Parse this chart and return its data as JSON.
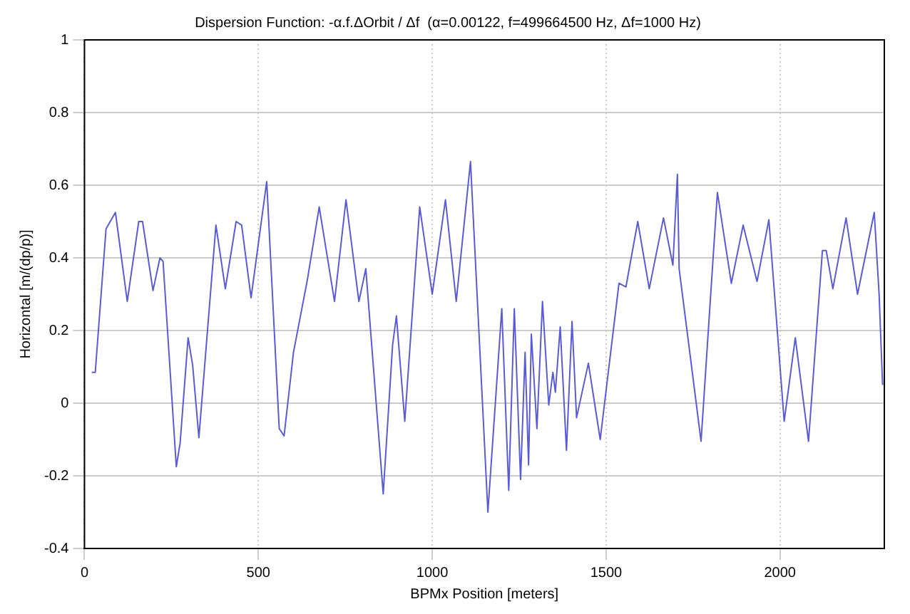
{
  "chart_data": {
    "type": "line",
    "title": "Dispersion Function: -α.f.ΔOrbit / Δf  (α=0.00122, f=499664500 Hz, Δf=1000 Hz)",
    "xlabel": "BPMx Position [meters]",
    "ylabel": "Horizontal [m/(dp/p)]",
    "series": [
      {
        "color": "#5b5bd6",
        "x": [
          21,
          31,
          62,
          89,
          123,
          156,
          167,
          197,
          217,
          226,
          264,
          275,
          298,
          311,
          329,
          378,
          405,
          436,
          452,
          479,
          524,
          560,
          574,
          601,
          641,
          675,
          719,
          752,
          789,
          809,
          859,
          886,
          897,
          921,
          964,
          1000,
          1038,
          1069,
          1110,
          1160,
          1200,
          1220,
          1236,
          1254,
          1267,
          1277,
          1285,
          1301,
          1317,
          1335,
          1347,
          1354,
          1368,
          1386,
          1402,
          1415,
          1449,
          1483,
          1537,
          1557,
          1591,
          1624,
          1665,
          1692,
          1705,
          1710,
          1773,
          1820,
          1860,
          1894,
          1934,
          1968,
          2012,
          2044,
          2082,
          2122,
          2133,
          2152,
          2190,
          2223,
          2271,
          2285,
          2295
        ],
        "values": [
          0.085,
          0.085,
          0.48,
          0.525,
          0.28,
          0.5,
          0.5,
          0.31,
          0.4,
          0.39,
          -0.175,
          -0.11,
          0.18,
          0.105,
          -0.095,
          0.49,
          0.315,
          0.5,
          0.49,
          0.29,
          0.61,
          -0.07,
          -0.09,
          0.14,
          0.34,
          0.54,
          0.28,
          0.56,
          0.28,
          0.37,
          -0.25,
          0.16,
          0.24,
          -0.05,
          0.54,
          0.3,
          0.56,
          0.28,
          0.665,
          -0.3,
          0.26,
          -0.24,
          0.26,
          -0.21,
          0.14,
          -0.17,
          0.19,
          -0.07,
          0.28,
          -0.005,
          0.085,
          0.03,
          0.21,
          -0.13,
          0.225,
          -0.04,
          0.11,
          -0.1,
          0.33,
          0.32,
          0.5,
          0.315,
          0.51,
          0.38,
          0.63,
          0.37,
          -0.105,
          0.58,
          0.33,
          0.49,
          0.335,
          0.505,
          -0.05,
          0.18,
          -0.105,
          0.42,
          0.42,
          0.315,
          0.51,
          0.3,
          0.525,
          0.3,
          0.05
        ]
      }
    ],
    "xlim": [
      0,
      2300
    ],
    "xticks": [
      0,
      500,
      1000,
      1500,
      2000
    ],
    "ylim": [
      -0.4,
      1
    ],
    "yticks": [
      -0.4,
      -0.2,
      0,
      0.2,
      0.4,
      0.6,
      0.8,
      1
    ],
    "grid": true,
    "legend": false,
    "marker": "none",
    "line_style": "solid"
  }
}
